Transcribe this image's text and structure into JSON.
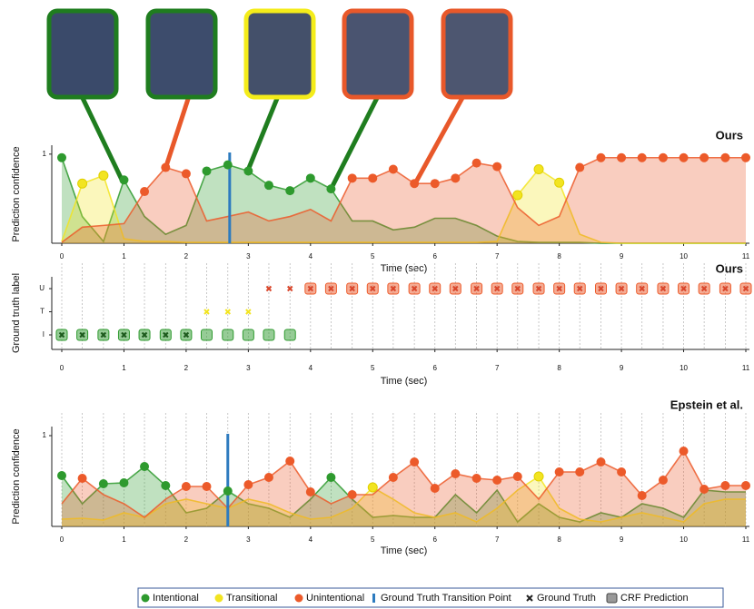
{
  "chart_data": [
    {
      "type": "confidence",
      "title": "Ours",
      "ylabel": "Prediction confidence",
      "xlabel": "Time (sec)",
      "x": [
        0,
        0.33,
        0.67,
        1,
        1.33,
        1.67,
        2,
        2.33,
        2.67,
        3,
        3.33,
        3.67,
        4,
        4.33,
        4.67,
        5,
        5.33,
        5.67,
        6,
        6.33,
        6.67,
        7,
        7.33,
        7.67,
        8,
        8.33,
        8.67,
        9,
        9.33,
        9.67,
        10,
        10.33,
        10.67,
        11
      ],
      "series": [
        {
          "name": "Intentional",
          "color": "#2e9a2e",
          "values": [
            0.96,
            0.3,
            0.02,
            0.71,
            0.3,
            0.1,
            0.2,
            0.81,
            0.88,
            0.81,
            0.65,
            0.59,
            0.73,
            0.61,
            0.25,
            0.25,
            0.15,
            0.18,
            0.28,
            0.28,
            0.2,
            0.08,
            0.02,
            0.01,
            0.01,
            0.01,
            0,
            0,
            0,
            0,
            0,
            0,
            0,
            0
          ]
        },
        {
          "name": "Transitional",
          "color": "#f2e421",
          "values": [
            0.02,
            0.67,
            0.76,
            0.05,
            0.02,
            0.02,
            0.01,
            0.01,
            0.01,
            0.01,
            0.01,
            0.01,
            0.01,
            0.01,
            0.01,
            0.01,
            0.01,
            0.01,
            0.01,
            0.01,
            0.01,
            0.02,
            0.54,
            0.83,
            0.68,
            0.1,
            0.01,
            0,
            0,
            0,
            0,
            0,
            0,
            0
          ]
        },
        {
          "name": "Unintentional",
          "color": "#ec5a2a",
          "values": [
            0.01,
            0.18,
            0.2,
            0.22,
            0.58,
            0.85,
            0.78,
            0.25,
            0.3,
            0.35,
            0.25,
            0.3,
            0.38,
            0.25,
            0.73,
            0.73,
            0.83,
            0.67,
            0.67,
            0.73,
            0.9,
            0.86,
            0.4,
            0.2,
            0.3,
            0.85,
            0.96,
            0.96,
            0.96,
            0.96,
            0.96,
            0.96,
            0.96,
            0.96
          ]
        }
      ],
      "transition": {
        "name": "Ground Truth Transition Point",
        "x": 2.7,
        "color": "#2d7bbf"
      },
      "xlim": [
        0,
        11
      ],
      "xticks": [
        0,
        1,
        2,
        3,
        4,
        5,
        6,
        7,
        8,
        9,
        10,
        11
      ],
      "ylim": [
        0,
        1.1
      ],
      "yticks": [
        1
      ]
    },
    {
      "type": "label-track",
      "title": "Ours",
      "ylabel": "Ground truth label",
      "xlabel": "Time (sec)",
      "categories": [
        "I",
        "T",
        "U"
      ],
      "colors": [
        "#2e9a2e",
        "#f2e421",
        "#ec5a2a"
      ],
      "x": [
        0,
        0.33,
        0.67,
        1,
        1.33,
        1.67,
        2,
        2.33,
        2.67,
        3,
        3.33,
        3.67,
        4,
        4.33,
        4.67,
        5,
        5.33,
        5.67,
        6,
        6.33,
        6.67,
        7,
        7.33,
        7.67,
        8,
        8.33,
        8.67,
        9,
        9.33,
        9.67,
        10,
        10.33,
        10.67,
        11
      ],
      "ground_truth": {
        "name": "Ground Truth",
        "values": [
          "I",
          "I",
          "I",
          "I",
          "I",
          "I",
          "I",
          "T",
          "T",
          "T",
          "U",
          "U",
          "U",
          "U",
          "U",
          "U",
          "U",
          "U",
          "U",
          "U",
          "U",
          "U",
          "U",
          "U",
          "U",
          "U",
          "U",
          "U",
          "U",
          "U",
          "U",
          "U",
          "U",
          "U"
        ]
      },
      "crf_prediction": {
        "name": "CRF Prediction",
        "values": [
          "I",
          "I",
          "I",
          "I",
          "I",
          "I",
          "I",
          "I",
          "I",
          "I",
          "I",
          "I",
          "U",
          "U",
          "U",
          "U",
          "U",
          "U",
          "U",
          "U",
          "U",
          "U",
          "U",
          "U",
          "U",
          "U",
          "U",
          "U",
          "U",
          "U",
          "U",
          "U",
          "U",
          "U"
        ]
      },
      "xlim": [
        0,
        11
      ],
      "xticks": [
        0,
        1,
        2,
        3,
        4,
        5,
        6,
        7,
        8,
        9,
        10,
        11
      ]
    },
    {
      "type": "confidence",
      "title": "Epstein et al.",
      "ylabel": "Prediction confidence",
      "xlabel": "Time (sec)",
      "x": [
        0,
        0.33,
        0.67,
        1,
        1.33,
        1.67,
        2,
        2.33,
        2.67,
        3,
        3.33,
        3.67,
        4,
        4.33,
        4.67,
        5,
        5.33,
        5.67,
        6,
        6.33,
        6.67,
        7,
        7.33,
        7.67,
        8,
        8.33,
        8.67,
        9,
        9.33,
        9.67,
        10,
        10.33,
        10.67,
        11
      ],
      "series": [
        {
          "name": "Intentional",
          "color": "#2e9a2e",
          "values": [
            0.56,
            0.25,
            0.47,
            0.48,
            0.66,
            0.45,
            0.15,
            0.2,
            0.39,
            0.25,
            0.2,
            0.1,
            0.3,
            0.54,
            0.3,
            0.1,
            0.12,
            0.1,
            0.1,
            0.35,
            0.15,
            0.4,
            0.05,
            0.25,
            0.1,
            0.05,
            0.15,
            0.1,
            0.25,
            0.2,
            0.1,
            0.4,
            0.38,
            0.38
          ]
        },
        {
          "name": "Transitional",
          "color": "#f2e421",
          "values": [
            0.08,
            0.09,
            0.07,
            0.15,
            0.1,
            0.25,
            0.3,
            0.25,
            0.2,
            0.3,
            0.25,
            0.15,
            0.08,
            0.1,
            0.2,
            0.43,
            0.3,
            0.15,
            0.1,
            0.15,
            0.05,
            0.2,
            0.4,
            0.55,
            0.2,
            0.08,
            0.05,
            0.1,
            0.15,
            0.1,
            0.05,
            0.25,
            0.3,
            0.3
          ]
        },
        {
          "name": "Unintentional",
          "color": "#ec5a2a",
          "values": [
            0.25,
            0.53,
            0.35,
            0.25,
            0.1,
            0.3,
            0.44,
            0.44,
            0.2,
            0.46,
            0.54,
            0.72,
            0.38,
            0.25,
            0.35,
            0.35,
            0.54,
            0.71,
            0.42,
            0.58,
            0.53,
            0.51,
            0.55,
            0.3,
            0.6,
            0.6,
            0.71,
            0.6,
            0.34,
            0.51,
            0.83,
            0.41,
            0.45,
            0.45
          ]
        }
      ],
      "transition": {
        "x": 2.67,
        "color": "#2d7bbf"
      },
      "xlim": [
        0,
        11
      ],
      "xticks": [
        0,
        1,
        2,
        3,
        4,
        5,
        6,
        7,
        8,
        9,
        10,
        11
      ],
      "ylim": [
        0,
        1.1
      ],
      "yticks": [
        1
      ]
    }
  ]
}
